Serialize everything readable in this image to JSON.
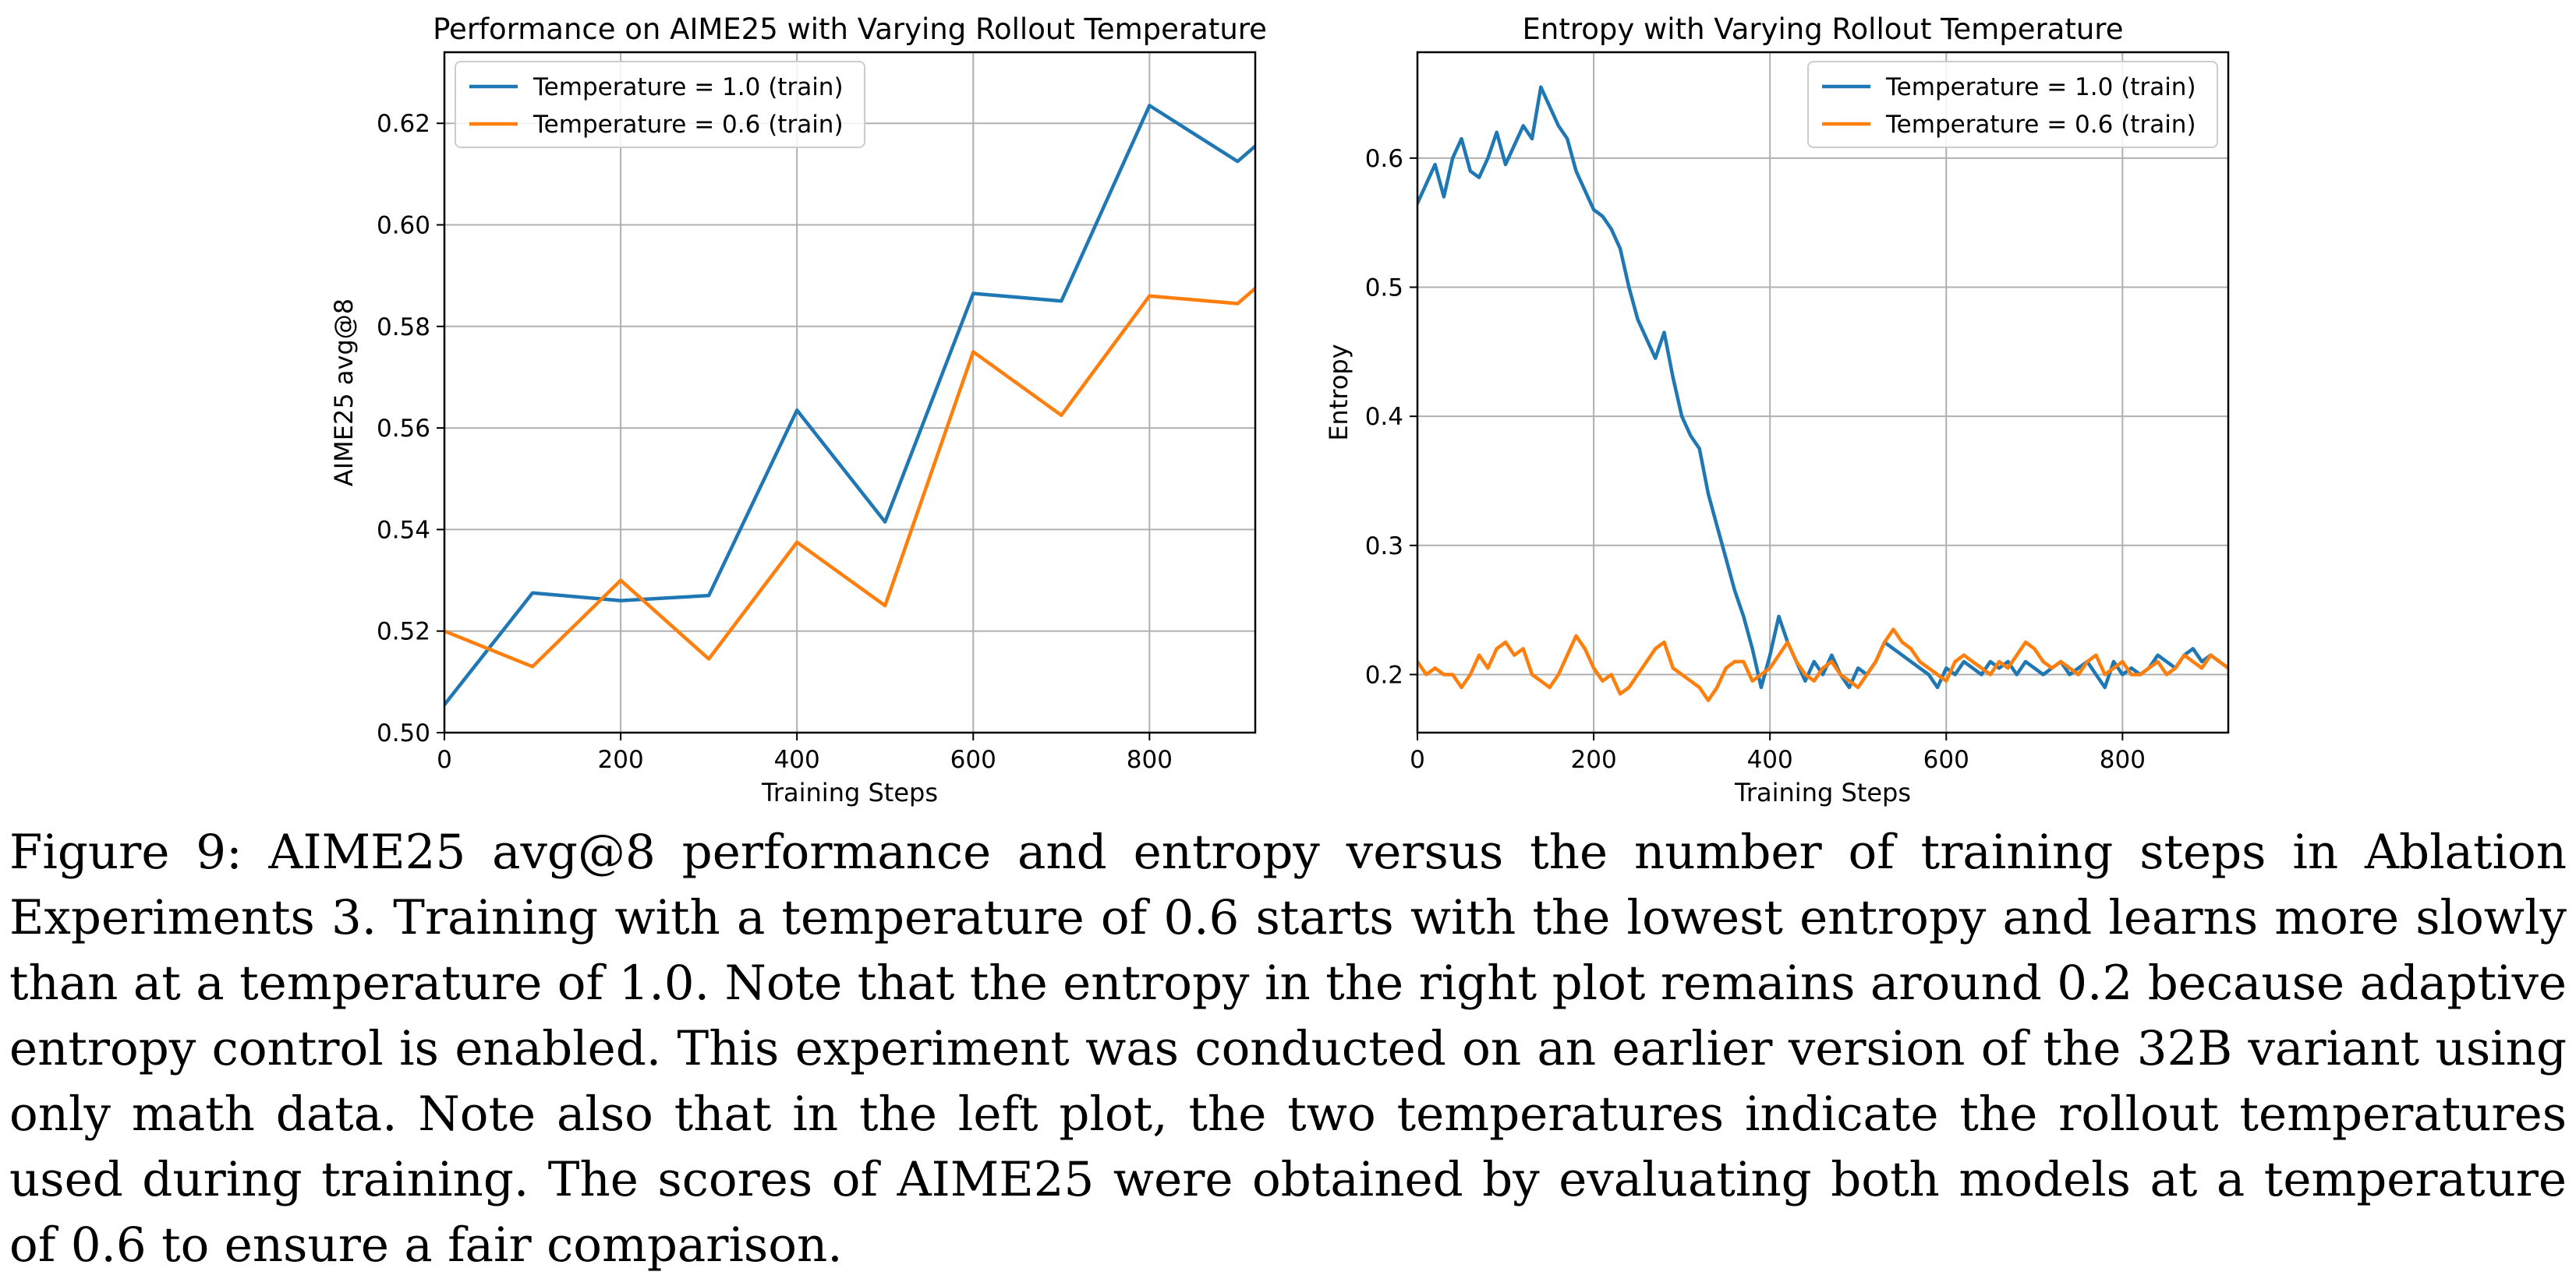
{
  "caption": "Figure 9: AIME25 avg@8 performance and entropy versus the number of training steps in Ablation Experiments 3. Training with a temperature of 0.6 starts with the lowest entropy and learns more slowly than at a temperature of 1.0. Note that the entropy in the right plot remains around 0.2 because adaptive entropy control is enabled. This experiment was conducted on an earlier version of the 32B variant using only math data. Note also that in the left plot, the two temperatures indicate the rollout temperatures used during training. The scores of AIME25 were obtained by evaluating both models at a temperature of 0.6 to ensure a fair comparison.",
  "chart_data": [
    {
      "type": "line",
      "title": "Performance on AIME25 with Varying Rollout Temperature",
      "xlabel": "Training Steps",
      "ylabel": "AIME25 avg@8",
      "xlim": [
        0,
        920
      ],
      "ylim": [
        0.5,
        0.634
      ],
      "xticks": [
        0,
        200,
        400,
        600,
        800
      ],
      "yticks": [
        0.5,
        0.52,
        0.54,
        0.56,
        0.58,
        0.6,
        0.62
      ],
      "ytick_decimals": 2,
      "grid": true,
      "legend_position": "top-left",
      "series": [
        {
          "name": "Temperature = 1.0 (train)",
          "color": "#1f77b4",
          "x": [
            0,
            100,
            200,
            300,
            400,
            500,
            600,
            700,
            800,
            900,
            920
          ],
          "y": [
            0.5055,
            0.5275,
            0.526,
            0.527,
            0.5635,
            0.5415,
            0.5865,
            0.585,
            0.6235,
            0.6125,
            0.6155
          ]
        },
        {
          "name": "Temperature = 0.6 (train)",
          "color": "#ff7f0e",
          "x": [
            0,
            100,
            200,
            300,
            400,
            500,
            600,
            700,
            800,
            900,
            920
          ],
          "y": [
            0.52,
            0.513,
            0.53,
            0.5145,
            0.5375,
            0.525,
            0.575,
            0.5625,
            0.586,
            0.5845,
            0.5875
          ]
        }
      ]
    },
    {
      "type": "line",
      "title": "Entropy with Varying Rollout Temperature",
      "xlabel": "Training Steps",
      "ylabel": "Entropy",
      "xlim": [
        0,
        920
      ],
      "ylim": [
        0.155,
        0.682
      ],
      "xticks": [
        0,
        200,
        400,
        600,
        800
      ],
      "yticks": [
        0.2,
        0.3,
        0.4,
        0.5,
        0.6
      ],
      "ytick_decimals": 1,
      "grid": true,
      "legend_position": "top-right",
      "series": [
        {
          "name": "Temperature = 1.0 (train)",
          "color": "#1f77b4",
          "x": [
            0,
            10,
            20,
            30,
            40,
            50,
            60,
            70,
            80,
            90,
            100,
            110,
            120,
            130,
            140,
            150,
            160,
            170,
            180,
            190,
            200,
            210,
            220,
            230,
            240,
            250,
            260,
            270,
            280,
            290,
            300,
            310,
            320,
            330,
            340,
            350,
            360,
            370,
            380,
            390,
            400,
            410,
            420,
            430,
            440,
            450,
            460,
            470,
            480,
            490,
            500,
            510,
            520,
            530,
            540,
            550,
            560,
            570,
            580,
            590,
            600,
            610,
            620,
            630,
            640,
            650,
            660,
            670,
            680,
            690,
            700,
            710,
            720,
            730,
            740,
            750,
            760,
            770,
            780,
            790,
            800,
            810,
            820,
            830,
            840,
            850,
            860,
            870,
            880,
            890,
            900,
            910,
            920
          ],
          "y": [
            0.565,
            0.58,
            0.595,
            0.57,
            0.6,
            0.615,
            0.59,
            0.585,
            0.6,
            0.62,
            0.595,
            0.61,
            0.625,
            0.615,
            0.655,
            0.64,
            0.625,
            0.615,
            0.59,
            0.575,
            0.56,
            0.555,
            0.545,
            0.53,
            0.5,
            0.475,
            0.46,
            0.445,
            0.465,
            0.43,
            0.4,
            0.385,
            0.375,
            0.34,
            0.315,
            0.29,
            0.265,
            0.245,
            0.22,
            0.19,
            0.215,
            0.245,
            0.225,
            0.21,
            0.195,
            0.21,
            0.2,
            0.215,
            0.2,
            0.19,
            0.205,
            0.2,
            0.21,
            0.225,
            0.22,
            0.215,
            0.21,
            0.205,
            0.2,
            0.19,
            0.205,
            0.2,
            0.21,
            0.205,
            0.2,
            0.21,
            0.205,
            0.21,
            0.2,
            0.21,
            0.205,
            0.2,
            0.205,
            0.21,
            0.2,
            0.205,
            0.21,
            0.2,
            0.19,
            0.21,
            0.2,
            0.205,
            0.2,
            0.205,
            0.215,
            0.21,
            0.205,
            0.215,
            0.22,
            0.21,
            0.215,
            0.21,
            0.205
          ]
        },
        {
          "name": "Temperature = 0.6 (train)",
          "color": "#ff7f0e",
          "x": [
            0,
            10,
            20,
            30,
            40,
            50,
            60,
            70,
            80,
            90,
            100,
            110,
            120,
            130,
            140,
            150,
            160,
            170,
            180,
            190,
            200,
            210,
            220,
            230,
            240,
            250,
            260,
            270,
            280,
            290,
            300,
            310,
            320,
            330,
            340,
            350,
            360,
            370,
            380,
            390,
            400,
            410,
            420,
            430,
            440,
            450,
            460,
            470,
            480,
            490,
            500,
            510,
            520,
            530,
            540,
            550,
            560,
            570,
            580,
            590,
            600,
            610,
            620,
            630,
            640,
            650,
            660,
            670,
            680,
            690,
            700,
            710,
            720,
            730,
            740,
            750,
            760,
            770,
            780,
            790,
            800,
            810,
            820,
            830,
            840,
            850,
            860,
            870,
            880,
            890,
            900,
            910,
            920
          ],
          "y": [
            0.21,
            0.2,
            0.205,
            0.2,
            0.2,
            0.19,
            0.2,
            0.215,
            0.205,
            0.22,
            0.225,
            0.215,
            0.22,
            0.2,
            0.195,
            0.19,
            0.2,
            0.215,
            0.23,
            0.22,
            0.205,
            0.195,
            0.2,
            0.185,
            0.19,
            0.2,
            0.21,
            0.22,
            0.225,
            0.205,
            0.2,
            0.195,
            0.19,
            0.18,
            0.19,
            0.205,
            0.21,
            0.21,
            0.195,
            0.2,
            0.205,
            0.215,
            0.225,
            0.21,
            0.2,
            0.195,
            0.205,
            0.21,
            0.2,
            0.195,
            0.19,
            0.2,
            0.21,
            0.225,
            0.235,
            0.225,
            0.22,
            0.21,
            0.205,
            0.2,
            0.195,
            0.21,
            0.215,
            0.21,
            0.205,
            0.2,
            0.21,
            0.205,
            0.215,
            0.225,
            0.22,
            0.21,
            0.205,
            0.21,
            0.205,
            0.2,
            0.21,
            0.215,
            0.2,
            0.205,
            0.21,
            0.2,
            0.2,
            0.205,
            0.21,
            0.2,
            0.205,
            0.215,
            0.21,
            0.205,
            0.215,
            0.21,
            0.205
          ]
        }
      ]
    }
  ]
}
